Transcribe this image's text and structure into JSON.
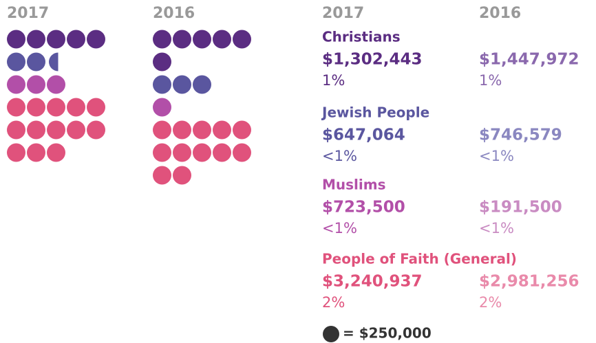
{
  "chart_data": {
    "type": "pictograph",
    "years": [
      "2017",
      "2016"
    ],
    "unit": 250000,
    "unit_label": "= $250,000",
    "unit_color": "#333333",
    "year_color": "#999999",
    "groups": [
      {
        "name": "Christians",
        "color": "#5b2d82",
        "color_light": "#8a68ad",
        "values": [
          1302443,
          1447972
        ],
        "value_labels": [
          "$1,302,443",
          "$1,447,972"
        ],
        "shares": [
          "1%",
          "1%"
        ]
      },
      {
        "name": "Jewish People",
        "color": "#5a569f",
        "color_light": "#8a87c0",
        "values": [
          647064,
          746579
        ],
        "value_labels": [
          "$647,064",
          "$746,579"
        ],
        "shares": [
          "<1%",
          "<1%"
        ]
      },
      {
        "name": "Muslims",
        "color": "#b24fa8",
        "color_light": "#c98bc2",
        "values": [
          723500,
          191500
        ],
        "value_labels": [
          "$723,500",
          "$191,500"
        ],
        "shares": [
          "<1%",
          "<1%"
        ]
      },
      {
        "name": "People of Faith (General)",
        "color": "#e0527c",
        "color_light": "#e98aaa",
        "values": [
          3240937,
          2981256
        ],
        "value_labels": [
          "$3,240,937",
          "$2,981,256"
        ],
        "shares": [
          "2%",
          "2%"
        ]
      }
    ]
  }
}
